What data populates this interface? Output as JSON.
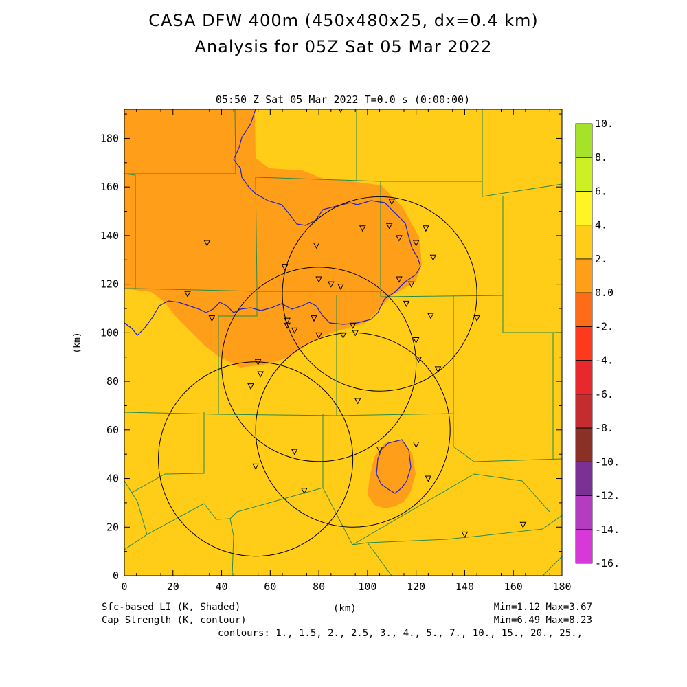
{
  "title_line1": "CASA DFW 400m (450x480x25, dx=0.4 km)",
  "title_line2": "Analysis for 05Z Sat 05 Mar 2022",
  "subtitle": "05:50 Z Sat 05 Mar 2022   T=0.0 s (0:00:00)",
  "x_axis": {
    "label": "(km)",
    "ticks": [
      0,
      20,
      40,
      60,
      80,
      100,
      120,
      140,
      160,
      180
    ],
    "range": [
      0,
      180
    ]
  },
  "y_axis": {
    "label": "(km)",
    "ticks": [
      0,
      20,
      40,
      60,
      80,
      100,
      120,
      140,
      160,
      180
    ],
    "range": [
      0,
      192
    ]
  },
  "footer": {
    "left_line1": "Sfc-based LI (K, Shaded)",
    "left_line2": "Cap Strength (K, contour)",
    "center": "(km)",
    "right_line1": "Min=1.12 Max=3.67",
    "right_line2": "Min=6.49 Max=8.23",
    "contours": "contours: 1., 1.5, 2., 2.5, 3., 4., 5., 7., 10., 15., 20., 25.,"
  },
  "colorbar": {
    "labels": [
      "10.",
      "8.",
      "6.",
      "4.",
      "2.",
      "0.0",
      "-2.",
      "-4.",
      "-6.",
      "-8.",
      "-10.",
      "-12.",
      "-14.",
      "-16."
    ],
    "colors": [
      "#a6e22a",
      "#cdf025",
      "#fff525",
      "#ffcc18",
      "#ff9e18",
      "#ff6c18",
      "#ff3a1c",
      "#e8282c",
      "#c42c30",
      "#8a3026",
      "#7a3094",
      "#b43cc0",
      "#d838d8"
    ]
  },
  "colors": {
    "field_main": "#ffcc18",
    "field_low": "#ff9e18",
    "county_lines": "#2a8a4a",
    "contour_line": "#2020c0"
  },
  "radar_rings": [
    {
      "cx": 105,
      "cy": 116,
      "r": 40
    },
    {
      "cx": 80,
      "cy": 87,
      "r": 40
    },
    {
      "cx": 94,
      "cy": 60,
      "r": 40
    },
    {
      "cx": 54,
      "cy": 48,
      "r": 40
    }
  ],
  "stations": [
    [
      34,
      137
    ],
    [
      26,
      116
    ],
    [
      36,
      106
    ],
    [
      55,
      88
    ],
    [
      56,
      83
    ],
    [
      52,
      78
    ],
    [
      66,
      127
    ],
    [
      67,
      105
    ],
    [
      67,
      103
    ],
    [
      70,
      101
    ],
    [
      78,
      106
    ],
    [
      80,
      122
    ],
    [
      80,
      99
    ],
    [
      79,
      136
    ],
    [
      85,
      120
    ],
    [
      89,
      119
    ],
    [
      90,
      99
    ],
    [
      94,
      103
    ],
    [
      95,
      100
    ],
    [
      96,
      72
    ],
    [
      98,
      143
    ],
    [
      110,
      154
    ],
    [
      109,
      144
    ],
    [
      113,
      139
    ],
    [
      113,
      122
    ],
    [
      118,
      120
    ],
    [
      116,
      112
    ],
    [
      120,
      137
    ],
    [
      124,
      143
    ],
    [
      127,
      131
    ],
    [
      126,
      107
    ],
    [
      120,
      97
    ],
    [
      121,
      89
    ],
    [
      129,
      85
    ],
    [
      145,
      106
    ],
    [
      70,
      51
    ],
    [
      54,
      45
    ],
    [
      74,
      35
    ],
    [
      105,
      52
    ],
    [
      120,
      54
    ],
    [
      125,
      40
    ],
    [
      140,
      17
    ],
    [
      164,
      21
    ],
    [
      89,
      192
    ]
  ]
}
